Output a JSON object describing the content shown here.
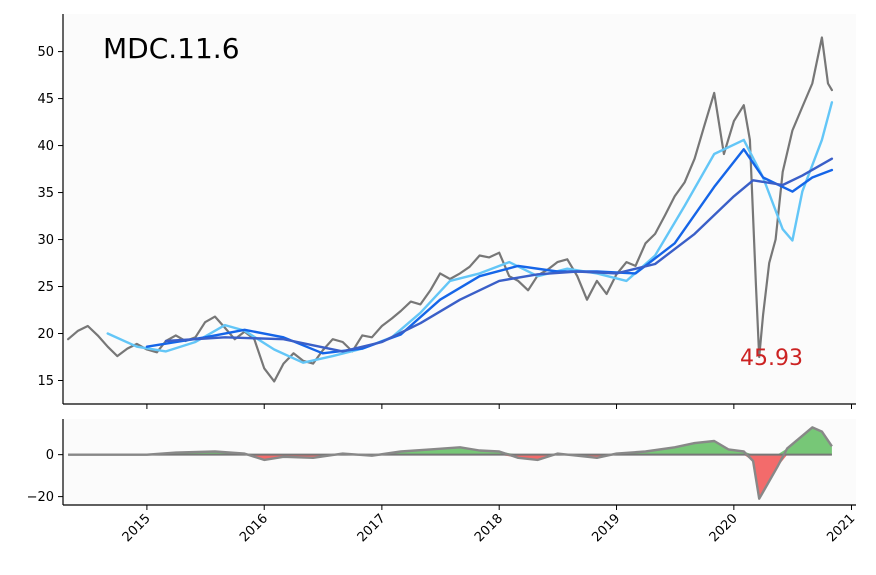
{
  "chart_data": [
    {
      "type": "line",
      "title": "MDC.11.6",
      "annotation": "45.93",
      "annotation_color": "#cc2222",
      "x_range": [
        "2014-04-15",
        "2021-01-15"
      ],
      "ylim": [
        12.5,
        54
      ],
      "yticks": [
        15,
        20,
        25,
        30,
        35,
        40,
        45,
        50
      ],
      "background": "#fbfbfb",
      "series": [
        {
          "role": "price",
          "color": "#777777",
          "points": [
            [
              "2014-05-01",
              19.4
            ],
            [
              "2014-06-01",
              20.3
            ],
            [
              "2014-07-01",
              20.8
            ],
            [
              "2014-08-01",
              19.8
            ],
            [
              "2014-09-01",
              18.6
            ],
            [
              "2014-10-01",
              17.6
            ],
            [
              "2014-11-01",
              18.4
            ],
            [
              "2014-12-01",
              18.9
            ],
            [
              "2015-01-01",
              18.3
            ],
            [
              "2015-02-01",
              18.0
            ],
            [
              "2015-03-01",
              19.2
            ],
            [
              "2015-04-01",
              19.8
            ],
            [
              "2015-05-01",
              19.2
            ],
            [
              "2015-06-01",
              19.6
            ],
            [
              "2015-07-01",
              21.2
            ],
            [
              "2015-08-01",
              21.8
            ],
            [
              "2015-09-01",
              20.6
            ],
            [
              "2015-10-01",
              19.4
            ],
            [
              "2015-11-01",
              20.2
            ],
            [
              "2015-12-01",
              19.4
            ],
            [
              "2016-01-01",
              16.3
            ],
            [
              "2016-02-01",
              14.9
            ],
            [
              "2016-03-01",
              16.8
            ],
            [
              "2016-04-01",
              17.9
            ],
            [
              "2016-05-01",
              17.1
            ],
            [
              "2016-06-01",
              16.8
            ],
            [
              "2016-07-01",
              18.2
            ],
            [
              "2016-08-01",
              19.4
            ],
            [
              "2016-09-01",
              19.1
            ],
            [
              "2016-10-01",
              18.1
            ],
            [
              "2016-11-01",
              19.8
            ],
            [
              "2016-12-01",
              19.6
            ],
            [
              "2017-01-01",
              20.8
            ],
            [
              "2017-02-01",
              21.6
            ],
            [
              "2017-03-01",
              22.4
            ],
            [
              "2017-04-01",
              23.4
            ],
            [
              "2017-05-01",
              23.1
            ],
            [
              "2017-06-01",
              24.6
            ],
            [
              "2017-07-01",
              26.4
            ],
            [
              "2017-08-01",
              25.8
            ],
            [
              "2017-09-01",
              26.4
            ],
            [
              "2017-10-01",
              27.1
            ],
            [
              "2017-11-01",
              28.3
            ],
            [
              "2017-12-01",
              28.1
            ],
            [
              "2018-01-01",
              28.6
            ],
            [
              "2018-02-01",
              26.1
            ],
            [
              "2018-03-01",
              25.6
            ],
            [
              "2018-04-01",
              24.6
            ],
            [
              "2018-05-01",
              26.2
            ],
            [
              "2018-06-01",
              26.8
            ],
            [
              "2018-07-01",
              27.6
            ],
            [
              "2018-08-01",
              27.9
            ],
            [
              "2018-09-01",
              26.1
            ],
            [
              "2018-10-01",
              23.6
            ],
            [
              "2018-11-01",
              25.6
            ],
            [
              "2018-12-01",
              24.2
            ],
            [
              "2019-01-01",
              26.3
            ],
            [
              "2019-02-01",
              27.6
            ],
            [
              "2019-03-01",
              27.2
            ],
            [
              "2019-04-01",
              29.6
            ],
            [
              "2019-05-01",
              30.6
            ],
            [
              "2019-06-01",
              32.6
            ],
            [
              "2019-07-01",
              34.6
            ],
            [
              "2019-08-01",
              36.1
            ],
            [
              "2019-09-01",
              38.6
            ],
            [
              "2019-10-01",
              42.1
            ],
            [
              "2019-11-01",
              45.6
            ],
            [
              "2019-12-01",
              39.1
            ],
            [
              "2020-01-01",
              42.6
            ],
            [
              "2020-02-01",
              44.3
            ],
            [
              "2020-02-20",
              40.6
            ],
            [
              "2020-03-10",
              25.0
            ],
            [
              "2020-03-20",
              17.5
            ],
            [
              "2020-04-01",
              22.0
            ],
            [
              "2020-04-20",
              27.5
            ],
            [
              "2020-05-10",
              30.0
            ],
            [
              "2020-06-01",
              37.2
            ],
            [
              "2020-07-01",
              41.6
            ],
            [
              "2020-08-01",
              44.1
            ],
            [
              "2020-09-01",
              46.6
            ],
            [
              "2020-10-01",
              51.5
            ],
            [
              "2020-10-20",
              46.6
            ],
            [
              "2020-11-01",
              45.9
            ]
          ]
        },
        {
          "role": "ma_short",
          "color": "#63c6f7",
          "points": [
            [
              "2014-09-01",
              20.0
            ],
            [
              "2014-12-01",
              18.6
            ],
            [
              "2015-03-01",
              18.1
            ],
            [
              "2015-06-01",
              19.1
            ],
            [
              "2015-09-01",
              20.9
            ],
            [
              "2015-11-01",
              20.3
            ],
            [
              "2016-02-01",
              18.3
            ],
            [
              "2016-05-01",
              16.9
            ],
            [
              "2016-08-01",
              17.6
            ],
            [
              "2016-11-01",
              18.4
            ],
            [
              "2017-02-01",
              19.6
            ],
            [
              "2017-05-01",
              22.2
            ],
            [
              "2017-08-01",
              25.6
            ],
            [
              "2017-11-01",
              26.4
            ],
            [
              "2018-02-01",
              27.6
            ],
            [
              "2018-05-01",
              26.1
            ],
            [
              "2018-08-01",
              26.9
            ],
            [
              "2018-11-01",
              26.4
            ],
            [
              "2019-02-01",
              25.6
            ],
            [
              "2019-05-01",
              28.3
            ],
            [
              "2019-08-01",
              33.6
            ],
            [
              "2019-11-01",
              39.1
            ],
            [
              "2020-02-01",
              40.6
            ],
            [
              "2020-04-01",
              36.6
            ],
            [
              "2020-06-01",
              31.1
            ],
            [
              "2020-07-01",
              29.9
            ],
            [
              "2020-08-01",
              35.1
            ],
            [
              "2020-10-01",
              40.6
            ],
            [
              "2020-11-01",
              44.6
            ]
          ]
        },
        {
          "role": "ma_medium",
          "color": "#1565e8",
          "points": [
            [
              "2015-01-01",
              18.6
            ],
            [
              "2015-07-01",
              19.6
            ],
            [
              "2015-11-01",
              20.4
            ],
            [
              "2016-03-01",
              19.6
            ],
            [
              "2016-07-01",
              17.9
            ],
            [
              "2016-11-01",
              18.4
            ],
            [
              "2017-03-01",
              19.9
            ],
            [
              "2017-07-01",
              23.6
            ],
            [
              "2017-11-01",
              26.1
            ],
            [
              "2018-03-01",
              27.2
            ],
            [
              "2018-07-01",
              26.6
            ],
            [
              "2018-11-01",
              26.6
            ],
            [
              "2019-03-01",
              26.4
            ],
            [
              "2019-07-01",
              29.6
            ],
            [
              "2019-11-01",
              35.6
            ],
            [
              "2020-02-01",
              39.6
            ],
            [
              "2020-04-01",
              36.6
            ],
            [
              "2020-07-01",
              35.1
            ],
            [
              "2020-09-01",
              36.6
            ],
            [
              "2020-11-01",
              37.4
            ]
          ]
        },
        {
          "role": "ma_long",
          "color": "#3a5fc8",
          "points": [
            [
              "2015-03-01",
              19.2
            ],
            [
              "2015-09-01",
              19.6
            ],
            [
              "2016-03-01",
              19.4
            ],
            [
              "2016-09-01",
              18.1
            ],
            [
              "2017-01-01",
              19.1
            ],
            [
              "2017-05-01",
              21.1
            ],
            [
              "2017-09-01",
              23.6
            ],
            [
              "2018-01-01",
              25.6
            ],
            [
              "2018-05-01",
              26.3
            ],
            [
              "2018-09-01",
              26.6
            ],
            [
              "2019-01-01",
              26.4
            ],
            [
              "2019-05-01",
              27.4
            ],
            [
              "2019-09-01",
              30.6
            ],
            [
              "2020-01-01",
              34.6
            ],
            [
              "2020-03-01",
              36.3
            ],
            [
              "2020-06-01",
              35.8
            ],
            [
              "2020-08-01",
              36.8
            ],
            [
              "2020-11-01",
              38.6
            ]
          ]
        }
      ]
    },
    {
      "type": "area",
      "x_range": [
        "2014-04-15",
        "2021-01-15"
      ],
      "ylim": [
        -24,
        17
      ],
      "yticks": [
        0,
        -20
      ],
      "ytick_labels": [
        "0",
        "−20"
      ],
      "xticks": [
        "2015",
        "2016",
        "2017",
        "2018",
        "2019",
        "2020",
        "2021"
      ],
      "background": "#fbfbfb",
      "positive_color": "#77c777",
      "negative_color": "#f36b6b",
      "line_color": "#888888",
      "zero_line_color": "#777777",
      "points": [
        [
          "2014-05-01",
          0
        ],
        [
          "2015-01-01",
          0
        ],
        [
          "2015-04-01",
          1
        ],
        [
          "2015-08-01",
          1.5
        ],
        [
          "2015-11-01",
          0.5
        ],
        [
          "2016-01-01",
          -2.5
        ],
        [
          "2016-03-01",
          -1
        ],
        [
          "2016-06-01",
          -1.5
        ],
        [
          "2016-09-01",
          0.5
        ],
        [
          "2016-12-01",
          -0.5
        ],
        [
          "2017-03-01",
          1.5
        ],
        [
          "2017-06-01",
          2.5
        ],
        [
          "2017-09-01",
          3.5
        ],
        [
          "2017-11-01",
          2
        ],
        [
          "2018-01-01",
          1.5
        ],
        [
          "2018-03-01",
          -1.5
        ],
        [
          "2018-05-01",
          -2.5
        ],
        [
          "2018-07-01",
          0.5
        ],
        [
          "2018-09-01",
          -0.5
        ],
        [
          "2018-11-01",
          -1.5
        ],
        [
          "2019-01-01",
          0.5
        ],
        [
          "2019-04-01",
          1.5
        ],
        [
          "2019-07-01",
          3.5
        ],
        [
          "2019-09-01",
          5.5
        ],
        [
          "2019-11-01",
          6.5
        ],
        [
          "2019-12-15",
          2.5
        ],
        [
          "2020-02-01",
          1.5
        ],
        [
          "2020-03-01",
          -3
        ],
        [
          "2020-03-20",
          -21
        ],
        [
          "2020-04-15",
          -14
        ],
        [
          "2020-05-15",
          -6
        ],
        [
          "2020-06-15",
          3
        ],
        [
          "2020-08-01",
          9
        ],
        [
          "2020-09-01",
          13
        ],
        [
          "2020-10-01",
          11
        ],
        [
          "2020-11-01",
          4
        ]
      ]
    }
  ]
}
